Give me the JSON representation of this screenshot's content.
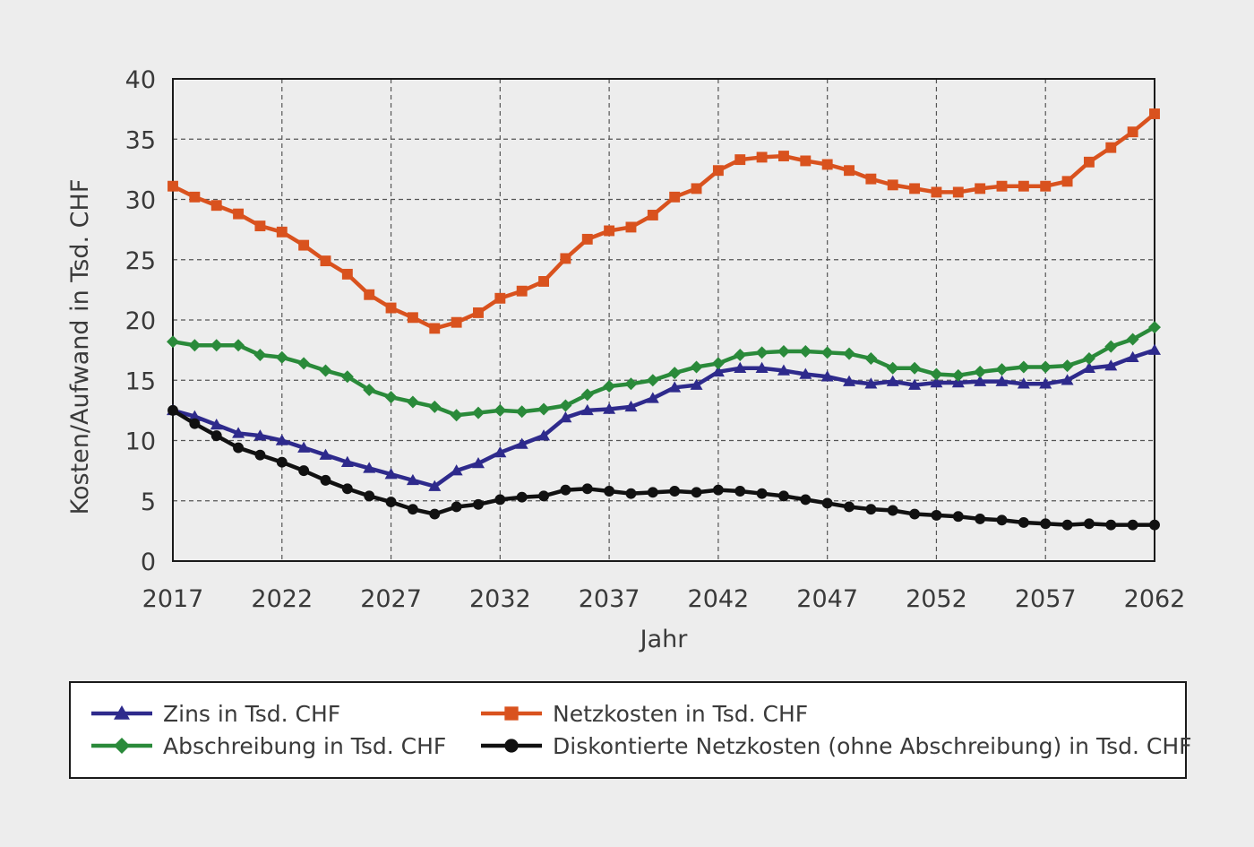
{
  "chart_data": {
    "type": "line",
    "xlabel": "Jahr",
    "ylabel": "Kosten/Aufwand in Tsd. CHF",
    "xlim": [
      2017,
      2062
    ],
    "ylim": [
      0,
      40
    ],
    "x_ticks": [
      2017,
      2022,
      2027,
      2032,
      2037,
      2042,
      2047,
      2052,
      2057,
      2062
    ],
    "y_ticks": [
      0,
      5,
      10,
      15,
      20,
      25,
      30,
      35,
      40
    ],
    "grid": true,
    "legend_position": "bottom",
    "x": [
      2017,
      2018,
      2019,
      2020,
      2021,
      2022,
      2023,
      2024,
      2025,
      2026,
      2027,
      2028,
      2029,
      2030,
      2031,
      2032,
      2033,
      2034,
      2035,
      2036,
      2037,
      2038,
      2039,
      2040,
      2041,
      2042,
      2043,
      2044,
      2045,
      2046,
      2047,
      2048,
      2049,
      2050,
      2051,
      2052,
      2053,
      2054,
      2055,
      2056,
      2057,
      2058,
      2059,
      2060,
      2061,
      2062
    ],
    "series": [
      {
        "name": "Zins in Tsd. CHF",
        "color": "#2e2a8c",
        "marker": "triangle",
        "values": [
          12.5,
          12.0,
          11.3,
          10.6,
          10.4,
          10.0,
          9.4,
          8.8,
          8.2,
          7.7,
          7.2,
          6.7,
          6.2,
          7.5,
          8.1,
          9.0,
          9.7,
          10.4,
          11.9,
          12.5,
          12.6,
          12.8,
          13.5,
          14.4,
          14.6,
          15.7,
          16.0,
          16.0,
          15.8,
          15.5,
          15.3,
          14.9,
          14.7,
          14.9,
          14.6,
          14.8,
          14.8,
          14.9,
          14.9,
          14.7,
          14.7,
          15.0,
          16.0,
          16.2,
          16.9,
          17.5
        ]
      },
      {
        "name": "Netzkosten in Tsd. CHF",
        "color": "#d9521e",
        "marker": "square",
        "values": [
          31.1,
          30.2,
          29.5,
          28.8,
          27.8,
          27.3,
          26.2,
          24.9,
          23.8,
          22.1,
          21.0,
          20.2,
          19.3,
          19.8,
          20.6,
          21.8,
          22.4,
          23.2,
          25.1,
          26.7,
          27.4,
          27.7,
          28.7,
          30.2,
          30.9,
          32.4,
          33.3,
          33.5,
          33.6,
          33.2,
          32.9,
          32.4,
          31.7,
          31.2,
          30.9,
          30.6,
          30.6,
          30.9,
          31.1,
          31.1,
          31.1,
          31.5,
          33.1,
          34.3,
          35.6,
          37.1
        ]
      },
      {
        "name": "Abschreibung in Tsd. CHF",
        "color": "#2a8a3a",
        "marker": "diamond",
        "values": [
          18.2,
          17.9,
          17.9,
          17.9,
          17.1,
          16.9,
          16.4,
          15.8,
          15.3,
          14.2,
          13.6,
          13.2,
          12.8,
          12.1,
          12.3,
          12.5,
          12.4,
          12.6,
          12.9,
          13.8,
          14.5,
          14.7,
          15.0,
          15.6,
          16.1,
          16.4,
          17.1,
          17.3,
          17.4,
          17.4,
          17.3,
          17.2,
          16.8,
          16.0,
          16.0,
          15.5,
          15.4,
          15.7,
          15.9,
          16.1,
          16.1,
          16.2,
          16.8,
          17.8,
          18.4,
          19.4
        ]
      },
      {
        "name": "Diskontierte Netzkosten (ohne Abschreibung) in Tsd. CHF",
        "color": "#111111",
        "marker": "circle",
        "values": [
          12.5,
          11.4,
          10.4,
          9.4,
          8.8,
          8.2,
          7.5,
          6.7,
          6.0,
          5.4,
          4.9,
          4.3,
          3.9,
          4.5,
          4.7,
          5.1,
          5.3,
          5.4,
          5.9,
          6.0,
          5.8,
          5.6,
          5.7,
          5.8,
          5.7,
          5.9,
          5.8,
          5.6,
          5.4,
          5.1,
          4.8,
          4.5,
          4.3,
          4.2,
          3.9,
          3.8,
          3.7,
          3.5,
          3.4,
          3.2,
          3.1,
          3.0,
          3.1,
          3.0,
          3.0,
          3.0
        ]
      }
    ]
  }
}
